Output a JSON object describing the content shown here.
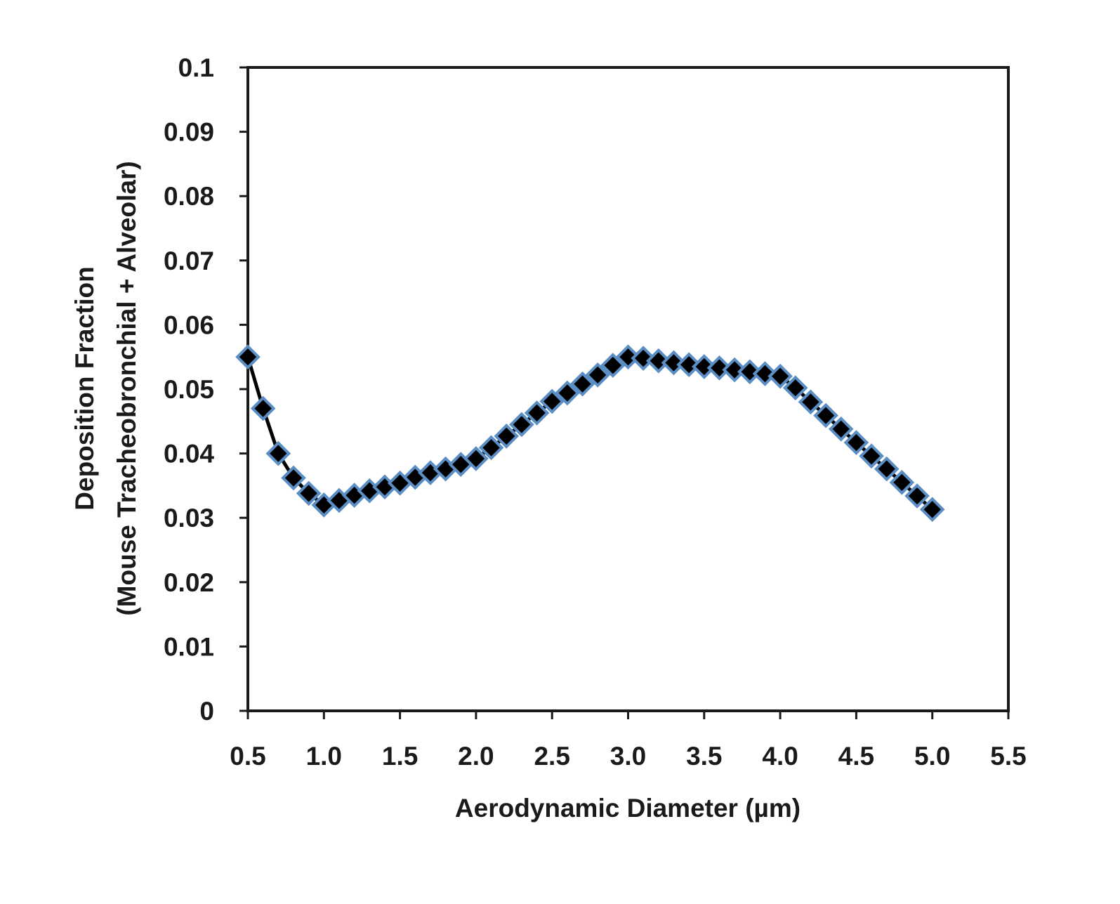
{
  "chart_data": {
    "type": "line",
    "title": "",
    "xlabel": "Aerodynamic Diameter (µm)",
    "ylabel_line1": "Deposition Fraction",
    "ylabel_line2": "(Mouse Tracheobronchial + Alveolar)",
    "xlim": [
      0.5,
      5.5
    ],
    "ylim": [
      0,
      0.1
    ],
    "x_ticks": [
      "0.5",
      "1.0",
      "1.5",
      "2.0",
      "2.5",
      "3.0",
      "3.5",
      "4.0",
      "4.5",
      "5.0",
      "5.5"
    ],
    "y_ticks": [
      "0",
      "0.01",
      "0.02",
      "0.03",
      "0.04",
      "0.05",
      "0.06",
      "0.07",
      "0.08",
      "0.09",
      "0.1"
    ],
    "grid": false,
    "marker": "diamond",
    "line_color": "#000000",
    "marker_fill": "#000000",
    "marker_edge": "#5b8ec4",
    "series": [
      {
        "x": [
          0.5,
          0.6,
          0.7,
          0.8,
          0.9,
          1.0,
          1.1,
          1.2,
          1.3,
          1.4,
          1.5,
          1.6,
          1.7,
          1.8,
          1.9,
          2.0,
          2.1,
          2.2,
          2.3,
          2.4,
          2.5,
          2.6,
          2.7,
          2.8,
          2.9,
          3.0,
          3.1,
          3.2,
          3.3,
          3.4,
          3.5,
          3.6,
          3.7,
          3.8,
          3.9,
          4.0,
          4.1,
          4.2,
          4.3,
          4.4,
          4.5,
          4.6,
          4.7,
          4.8,
          4.9,
          5.0
        ],
        "y": [
          0.055,
          0.047,
          0.04,
          0.0362,
          0.0338,
          0.032,
          0.0327,
          0.0335,
          0.0342,
          0.0348,
          0.0354,
          0.0363,
          0.037,
          0.0376,
          0.0383,
          0.0392,
          0.0409,
          0.0427,
          0.0445,
          0.0463,
          0.0481,
          0.0494,
          0.0508,
          0.0522,
          0.0537,
          0.055,
          0.0548,
          0.0544,
          0.0541,
          0.0538,
          0.0535,
          0.0533,
          0.053,
          0.0527,
          0.0524,
          0.052,
          0.0502,
          0.048,
          0.0459,
          0.0438,
          0.0417,
          0.0396,
          0.0376,
          0.0355,
          0.0334,
          0.0313
        ]
      }
    ]
  }
}
